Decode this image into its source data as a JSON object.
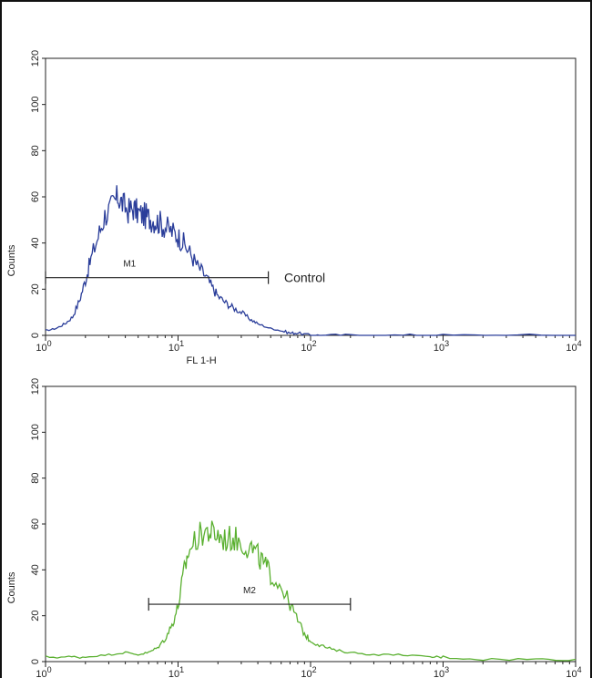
{
  "chart_data": [
    {
      "type": "line",
      "title": "",
      "xlabel": "FL 1-H",
      "ylabel": "Counts",
      "xscale": "log",
      "xlim": [
        1,
        10000
      ],
      "ylim": [
        0,
        120
      ],
      "x_ticks": [
        {
          "base": "10",
          "exp": "0"
        },
        {
          "base": "10",
          "exp": "1"
        },
        {
          "base": "10",
          "exp": "2"
        },
        {
          "base": "10",
          "exp": "3"
        },
        {
          "base": "10",
          "exp": "4"
        }
      ],
      "y_ticks": [
        "0",
        "20",
        "40",
        "60",
        "80",
        "100",
        "120"
      ],
      "color": "#2b3e9a",
      "series": [
        {
          "x": [
            1,
            1.2,
            1.4,
            1.6,
            1.8,
            2,
            2.2,
            2.5,
            2.8,
            3.2,
            3.5,
            3.8,
            4.2,
            4.6,
            5,
            5.5,
            6,
            6.6,
            7.2,
            8,
            9,
            10,
            11,
            12.5,
            14,
            16,
            18,
            20,
            23,
            26,
            30,
            35,
            40,
            50,
            60,
            70,
            80,
            100,
            120,
            200,
            500,
            1000,
            3000,
            10000
          ],
          "y": [
            2,
            3,
            5,
            8,
            15,
            24,
            33,
            43,
            52,
            56,
            60,
            57,
            54,
            55,
            53,
            52,
            51,
            50,
            49,
            47,
            45,
            43,
            40,
            35,
            30,
            26,
            21,
            17,
            14,
            12,
            10,
            7,
            5,
            3,
            2,
            1,
            1,
            0,
            0,
            0,
            0,
            0,
            0,
            0
          ]
        }
      ],
      "markers": [
        {
          "label": "M1",
          "x_start": 1,
          "x_end": 48,
          "y": 25
        }
      ],
      "annotations": [
        "Control"
      ]
    },
    {
      "type": "line",
      "title": "",
      "xlabel": "",
      "ylabel": "Counts",
      "xscale": "log",
      "xlim": [
        1,
        10000
      ],
      "ylim": [
        0,
        120
      ],
      "x_ticks": [
        {
          "base": "10",
          "exp": "0"
        },
        {
          "base": "10",
          "exp": "1"
        },
        {
          "base": "10",
          "exp": "2"
        },
        {
          "base": "10",
          "exp": "3"
        },
        {
          "base": "10",
          "exp": "4"
        }
      ],
      "y_ticks": [
        "0",
        "20",
        "40",
        "60",
        "80",
        "100",
        "120"
      ],
      "color": "#5ab030",
      "series": [
        {
          "x": [
            1,
            1.5,
            2,
            3,
            4,
            5,
            6,
            7,
            8,
            9,
            10,
            11,
            12,
            14,
            16,
            18,
            20,
            23,
            26,
            30,
            35,
            40,
            45,
            50,
            60,
            70,
            80,
            90,
            100,
            120,
            150,
            200,
            300,
            500,
            800,
            1000,
            2000,
            5000,
            10000
          ],
          "y": [
            2,
            2,
            2,
            3,
            4,
            3,
            4,
            6,
            10,
            16,
            24,
            38,
            48,
            54,
            57,
            56,
            55,
            53,
            54,
            52,
            50,
            46,
            42,
            38,
            33,
            25,
            18,
            12,
            9,
            7,
            5,
            4,
            3,
            3,
            2,
            2,
            1,
            1,
            1
          ]
        }
      ],
      "markers": [
        {
          "label": "M2",
          "x_start": 6,
          "x_end": 200,
          "y": 25
        }
      ],
      "annotations": []
    }
  ]
}
